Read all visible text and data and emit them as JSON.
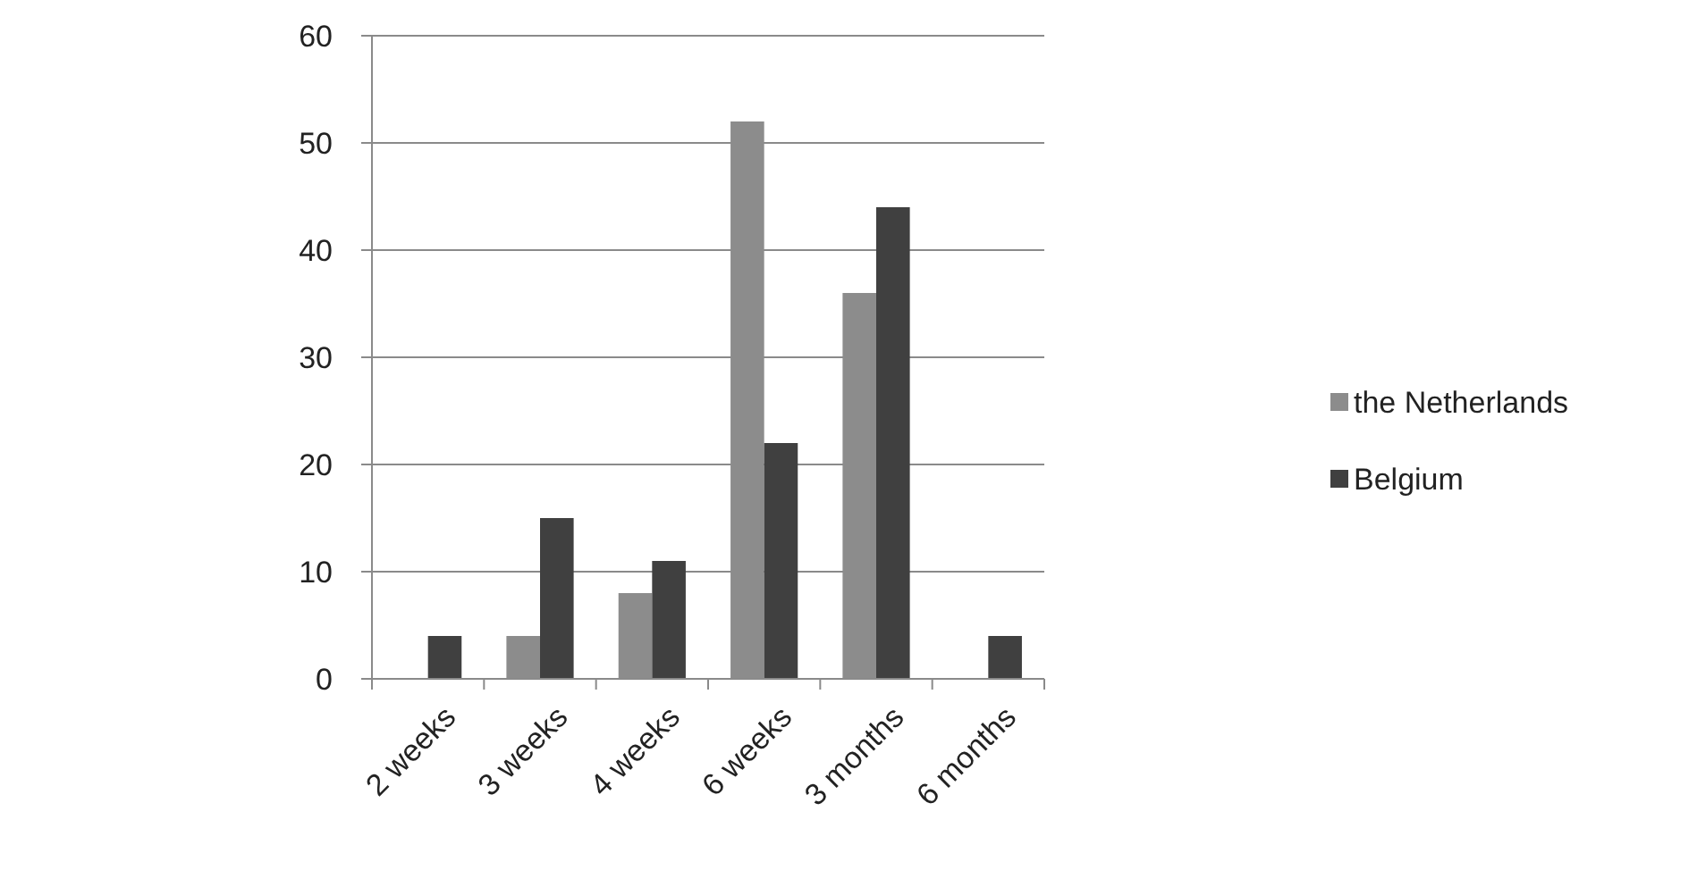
{
  "chart_data": {
    "type": "bar",
    "categories": [
      "2 weeks",
      "3 weeks",
      "4 weeks",
      "6 weeks",
      "3 months",
      "6 months"
    ],
    "series": [
      {
        "name": "the Netherlands",
        "color": "#8c8c8c",
        "values": [
          0,
          4,
          8,
          52,
          36,
          0
        ]
      },
      {
        "name": "Belgium",
        "color": "#404040",
        "values": [
          4,
          15,
          11,
          22,
          44,
          4
        ]
      }
    ],
    "ylim": [
      0,
      60
    ],
    "yticks": [
      0,
      10,
      20,
      30,
      40,
      50,
      60
    ],
    "grid": "y",
    "legend": "right"
  }
}
